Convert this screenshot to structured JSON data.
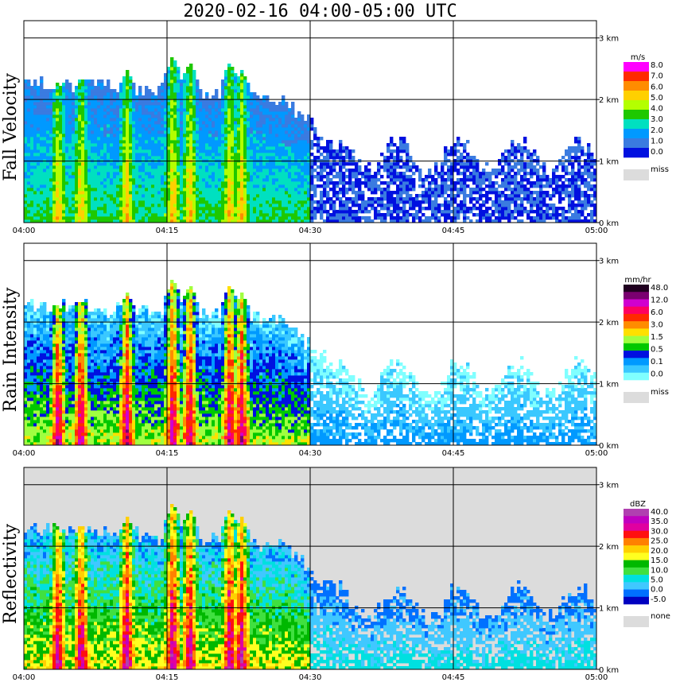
{
  "title": "2020-02-16   04:00-05:00 UTC",
  "chart_data": [
    {
      "type": "heatmap",
      "ylabel": "Fall Velocity",
      "legend_unit": "m/s",
      "legend_labels": [
        "8.0",
        "7.0",
        "6.0",
        "5.0",
        "4.0",
        "3.0",
        "2.0",
        "1.0",
        "0.0"
      ],
      "legend_colors": [
        "#ff00ff",
        "#ff2a00",
        "#ff8c00",
        "#ffd000",
        "#b4ff00",
        "#1ec800",
        "#00e0c0",
        "#0099ff",
        "#3a7be0",
        "#0010e0"
      ],
      "missing_label": "miss",
      "missing_color": "#dcdcdc",
      "background_color": "#ffffff",
      "x_ticks": [
        "04:00",
        "04:15",
        "04:30",
        "04:45",
        "05:00"
      ],
      "y_ticks": [
        "0 km",
        "1 km",
        "2 km",
        "3 km"
      ],
      "xlim": [
        "04:00",
        "05:00"
      ],
      "ylim": [
        0,
        3.1
      ],
      "grid": true
    },
    {
      "type": "heatmap",
      "ylabel": "Rain Intensity",
      "legend_unit": "mm/hr",
      "legend_labels": [
        "48.0",
        "12.0",
        "6.0",
        "3.0",
        "1.5",
        "0.5",
        "0.1",
        "0.0"
      ],
      "legend_colors": [
        "#200020",
        "#7a0070",
        "#d000d0",
        "#ff0060",
        "#ff2a00",
        "#ff8c00",
        "#ffe000",
        "#a0ff40",
        "#00c800",
        "#0010e0",
        "#0099ff",
        "#3ac8ff",
        "#80ffff"
      ],
      "missing_label": "miss",
      "missing_color": "#dcdcdc",
      "background_color": "#ffffff",
      "x_ticks": [
        "04:00",
        "04:15",
        "04:30",
        "04:45",
        "05:00"
      ],
      "y_ticks": [
        "0 km",
        "1 km",
        "2 km",
        "3 km"
      ],
      "xlim": [
        "04:00",
        "05:00"
      ],
      "ylim": [
        0,
        3.1
      ],
      "grid": true
    },
    {
      "type": "heatmap",
      "ylabel": "Reflectivity",
      "legend_unit": "dBZ",
      "legend_labels": [
        "40.0",
        "35.0",
        "30.0",
        "25.0",
        "20.0",
        "15.0",
        "10.0",
        "5.0",
        "0.0",
        "-5.0"
      ],
      "legend_colors": [
        "#b040b0",
        "#c000c0",
        "#e000a0",
        "#ff1010",
        "#ff8000",
        "#ffd000",
        "#ffff20",
        "#00b800",
        "#40e040",
        "#00e0e0",
        "#40c8ff",
        "#0070ff",
        "#0000c0"
      ],
      "missing_label": "none",
      "missing_color": "#dcdcdc",
      "background_color": "#dcdcdc",
      "x_ticks": [
        "04:00",
        "04:15",
        "04:30",
        "04:45",
        "05:00"
      ],
      "y_ticks": [
        "0 km",
        "1 km",
        "2 km",
        "3 km"
      ],
      "xlim": [
        "04:00",
        "05:00"
      ],
      "ylim": [
        0,
        3.1
      ],
      "grid": true
    }
  ]
}
